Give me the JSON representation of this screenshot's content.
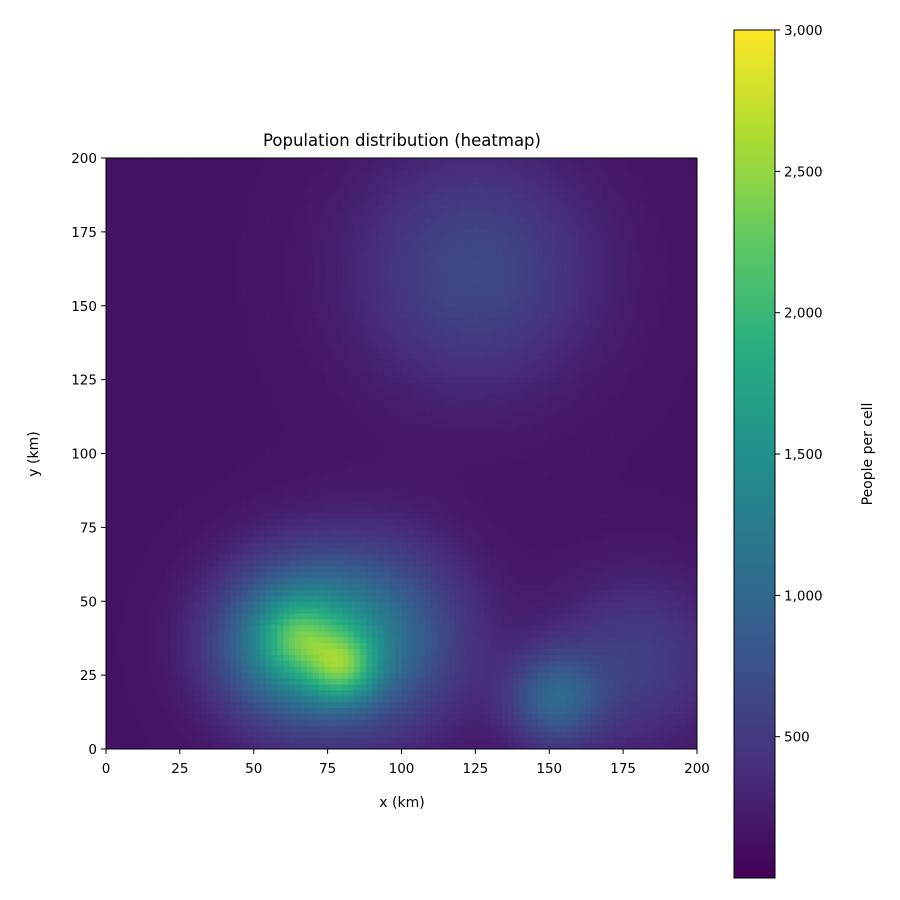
{
  "chart_data": {
    "type": "heatmap",
    "title": "Population distribution (heatmap)",
    "xlabel": "x (km)",
    "ylabel": "y (km)",
    "xlim": [
      0,
      200
    ],
    "ylim": [
      0,
      200
    ],
    "x_ticks": [
      "0",
      "25",
      "50",
      "75",
      "100",
      "125",
      "150",
      "175",
      "200"
    ],
    "y_ticks": [
      "0",
      "25",
      "50",
      "75",
      "100",
      "125",
      "150",
      "175",
      "200"
    ],
    "grid": false,
    "colormap": "viridis",
    "colorbar": {
      "label": "People per cell",
      "range": [
        0,
        3000
      ],
      "ticks": [
        {
          "value": 500,
          "label": "500"
        },
        {
          "value": 1000,
          "label": "1,000"
        },
        {
          "value": 1500,
          "label": "1,500"
        },
        {
          "value": 2000,
          "label": "2,000"
        },
        {
          "value": 2500,
          "label": "2,500"
        },
        {
          "value": 3000,
          "label": "3,000"
        }
      ]
    },
    "grid_resolution": [
      100,
      100
    ],
    "background_density": 150,
    "hotspots": [
      {
        "x": 62,
        "y": 36,
        "peak": 1150,
        "spread": 18
      },
      {
        "x": 90,
        "y": 38,
        "peak": 900,
        "spread": 22
      },
      {
        "x": 80,
        "y": 28,
        "peak": 950,
        "spread": 8
      },
      {
        "x": 65,
        "y": 38,
        "peak": 550,
        "spread": 8
      },
      {
        "x": 152,
        "y": 17,
        "peak": 750,
        "spread": 11
      },
      {
        "x": 180,
        "y": 30,
        "peak": 400,
        "spread": 20
      },
      {
        "x": 125,
        "y": 162,
        "peak": 500,
        "spread": 28
      }
    ]
  }
}
